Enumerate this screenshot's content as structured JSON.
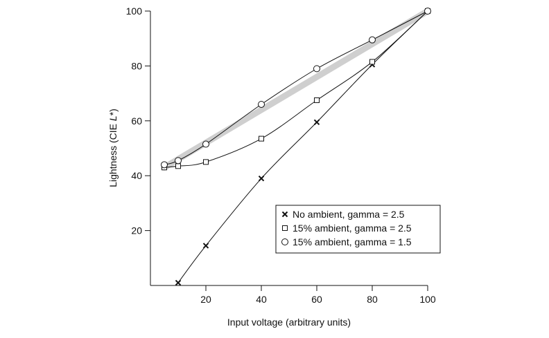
{
  "chart_data": {
    "type": "line",
    "title": "",
    "xlabel": "Input voltage (arbitrary units)",
    "ylabel_main": "Lightness (CIE ",
    "ylabel_italic": "L",
    "ylabel_end": "*)",
    "xlim": [
      0,
      100
    ],
    "ylim": [
      0,
      100
    ],
    "xticks": [
      20,
      40,
      60,
      80,
      100
    ],
    "yticks": [
      20,
      40,
      60,
      80,
      100
    ],
    "grid": false,
    "legend_position": "lower-right",
    "series": [
      {
        "name": "No ambient, gamma = 2.5",
        "marker": "x",
        "x": [
          10,
          20,
          40,
          60,
          80,
          100
        ],
        "y": [
          1,
          14.5,
          39,
          59.5,
          80.5,
          100
        ]
      },
      {
        "name": "15% ambient, gamma = 2.5",
        "marker": "square",
        "x": [
          5,
          10,
          20,
          40,
          60,
          80,
          100
        ],
        "y": [
          43,
          43.5,
          45,
          53.5,
          67.5,
          81.5,
          100
        ]
      },
      {
        "name": "15% ambient, gamma = 1.5",
        "marker": "circle",
        "x": [
          5,
          10,
          20,
          40,
          60,
          80,
          100
        ],
        "y": [
          44,
          45.5,
          51.5,
          66,
          79,
          89.5,
          100
        ]
      }
    ],
    "reference_band": {
      "x": [
        5,
        100
      ],
      "y": [
        43,
        100
      ],
      "color": "#cfcfcf"
    }
  }
}
